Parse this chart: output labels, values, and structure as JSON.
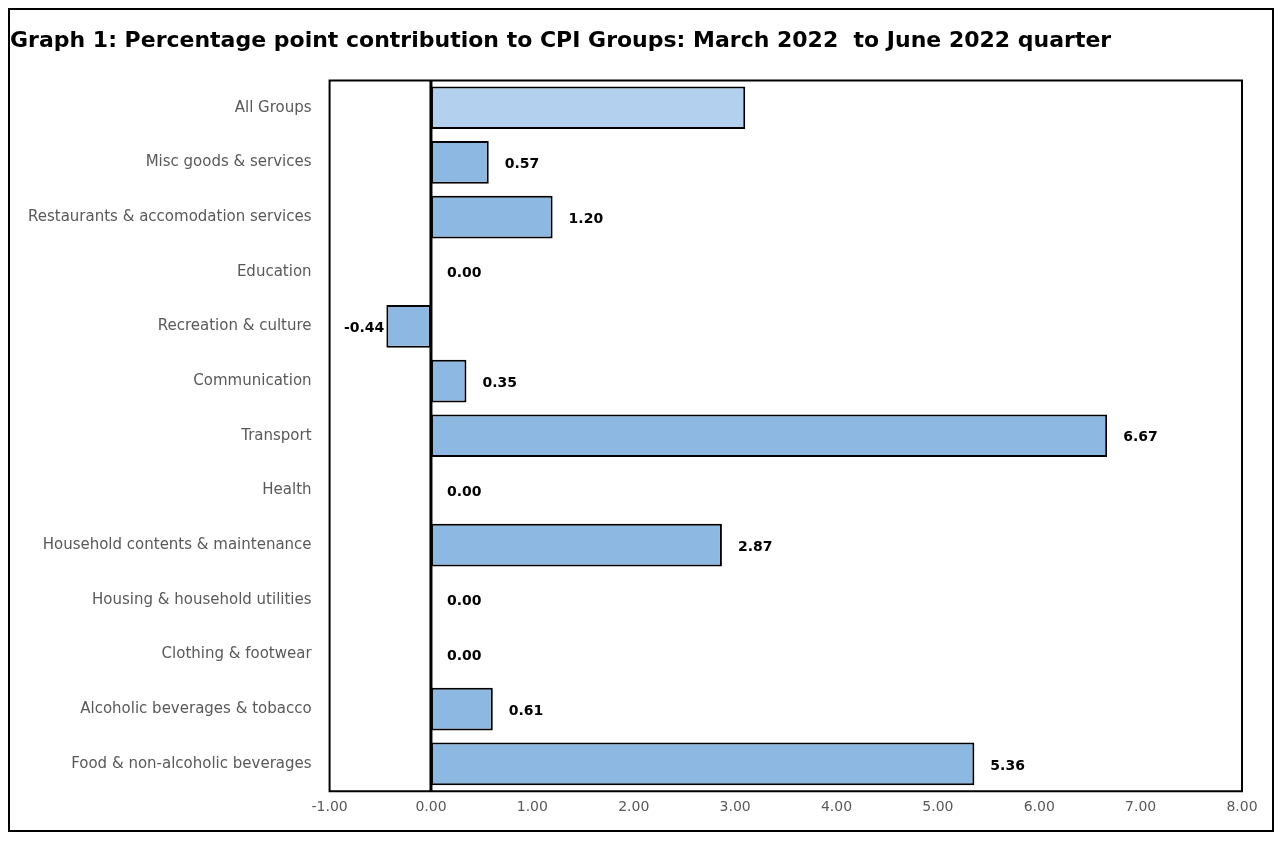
{
  "chart_data": {
    "type": "bar",
    "orientation": "horizontal",
    "title": "Graph 1: Percentage point contribution to CPI Groups: March 2022  to June 2022 quarter",
    "categories": [
      "All Groups",
      "Misc goods & services",
      "Restaurants & accomodation services",
      "Education",
      "Recreation & culture",
      "Communication",
      "Transport",
      "Health",
      "Household contents & maintenance",
      "Housing & household utilities",
      "Clothing & footwear",
      "Alcoholic beverages & tobacco",
      "Food & non-alcoholic beverages"
    ],
    "values": [
      3.1,
      0.57,
      1.2,
      0,
      -0.44,
      0.35,
      6.67,
      0,
      2.87,
      0,
      0,
      0.61,
      5.36
    ],
    "value_labels": [
      null,
      "0.57",
      "1.20",
      "0.00",
      "-0.44",
      "0.35",
      "6.67",
      "0.00",
      "2.87",
      "0.00",
      "0.00",
      "0.61",
      "5.36"
    ],
    "colors": [
      "#b3d1ee",
      "#8db8e2",
      "#8db8e2",
      "#8db8e2",
      "#8db8e2",
      "#8db8e2",
      "#8db8e2",
      "#8db8e2",
      "#8db8e2",
      "#8db8e2",
      "#8db8e2",
      "#8db8e2",
      "#8db8e2"
    ],
    "xlim": [
      -1,
      8
    ],
    "xticks": [
      {
        "value": -1,
        "label": "-1.00"
      },
      {
        "value": 0,
        "label": "0.00"
      },
      {
        "value": 1,
        "label": "1.00"
      },
      {
        "value": 2,
        "label": "2.00"
      },
      {
        "value": 3,
        "label": "3.00"
      },
      {
        "value": 4,
        "label": "4.00"
      },
      {
        "value": 5,
        "label": "5.00"
      },
      {
        "value": 6,
        "label": "6.00"
      },
      {
        "value": 7,
        "label": "7.00"
      },
      {
        "value": 8,
        "label": "8.00"
      }
    ],
    "legend": false
  }
}
